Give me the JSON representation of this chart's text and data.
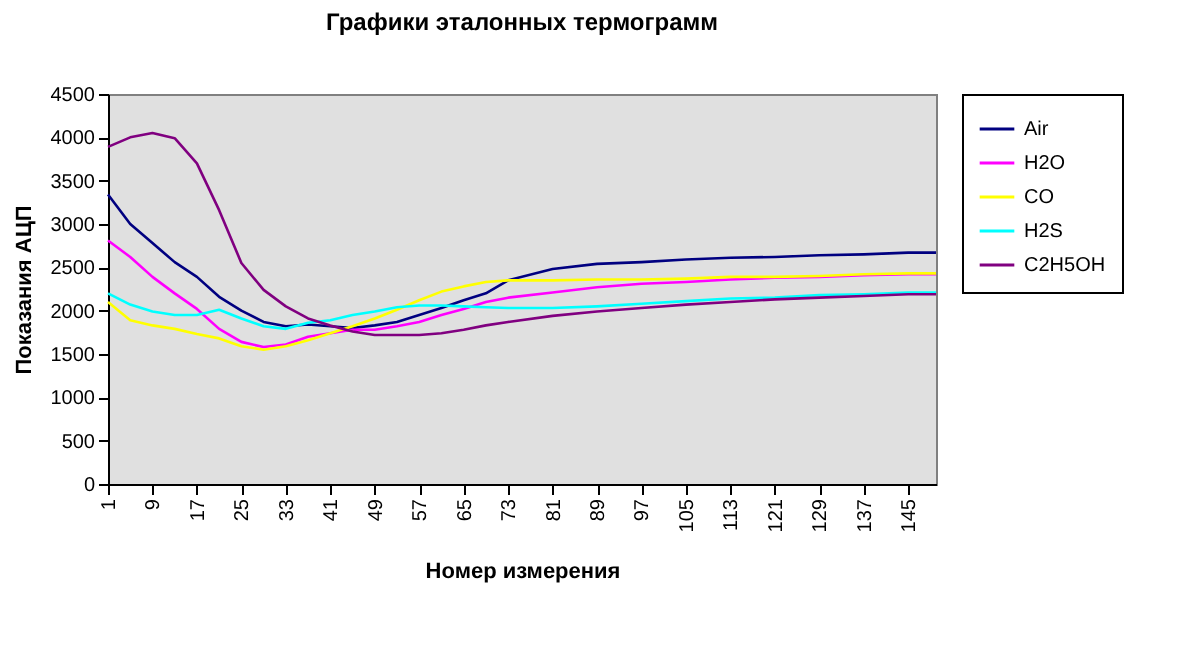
{
  "chart_data": {
    "type": "line",
    "title": "Графики эталонных термограмм",
    "xlabel": "Номер измерения",
    "ylabel": "Показания АЦП",
    "x": [
      1,
      5,
      9,
      13,
      17,
      21,
      25,
      29,
      33,
      37,
      41,
      45,
      49,
      53,
      57,
      61,
      65,
      69,
      73,
      81,
      89,
      97,
      105,
      113,
      121,
      129,
      137,
      145,
      150
    ],
    "series": [
      {
        "name": "Air",
        "color": "#000080",
        "values": [
          3340,
          3000,
          2780,
          2560,
          2390,
          2160,
          2000,
          1870,
          1820,
          1840,
          1820,
          1800,
          1830,
          1870,
          1950,
          2030,
          2120,
          2200,
          2350,
          2480,
          2540,
          2560,
          2590,
          2610,
          2620,
          2640,
          2650,
          2670,
          2670
        ]
      },
      {
        "name": "H2O",
        "color": "#ff00ff",
        "values": [
          2810,
          2620,
          2390,
          2200,
          2020,
          1790,
          1640,
          1580,
          1610,
          1700,
          1740,
          1780,
          1780,
          1820,
          1870,
          1950,
          2020,
          2100,
          2150,
          2210,
          2270,
          2310,
          2330,
          2360,
          2380,
          2390,
          2410,
          2420,
          2420
        ]
      },
      {
        "name": "CO",
        "color": "#ffff00",
        "values": [
          2100,
          1890,
          1830,
          1790,
          1730,
          1680,
          1590,
          1550,
          1590,
          1660,
          1740,
          1820,
          1910,
          2010,
          2120,
          2220,
          2280,
          2330,
          2350,
          2350,
          2360,
          2360,
          2370,
          2390,
          2390,
          2400,
          2420,
          2430,
          2430
        ]
      },
      {
        "name": "H2S",
        "color": "#00ffff",
        "values": [
          2200,
          2070,
          1990,
          1950,
          1950,
          2010,
          1910,
          1820,
          1790,
          1860,
          1890,
          1950,
          1990,
          2040,
          2060,
          2060,
          2050,
          2040,
          2030,
          2030,
          2050,
          2080,
          2110,
          2140,
          2150,
          2180,
          2190,
          2210,
          2210
        ]
      },
      {
        "name": "C2H5OH",
        "color": "#800080",
        "values": [
          3890,
          4000,
          4050,
          3990,
          3700,
          3160,
          2550,
          2240,
          2050,
          1910,
          1830,
          1760,
          1720,
          1720,
          1720,
          1740,
          1780,
          1830,
          1870,
          1940,
          1990,
          2030,
          2070,
          2100,
          2130,
          2150,
          2170,
          2190,
          2190
        ]
      }
    ],
    "xlim": [
      1,
      150
    ],
    "xticks": [
      1,
      9,
      17,
      25,
      33,
      41,
      49,
      57,
      65,
      73,
      81,
      89,
      97,
      105,
      113,
      121,
      129,
      137,
      145
    ],
    "ylim": [
      0,
      4500
    ],
    "yticks": [
      0,
      500,
      1000,
      1500,
      2000,
      2500,
      3000,
      3500,
      4000,
      4500
    ],
    "grid": false,
    "legend": "right",
    "marker": "none",
    "line_style": "solid"
  }
}
